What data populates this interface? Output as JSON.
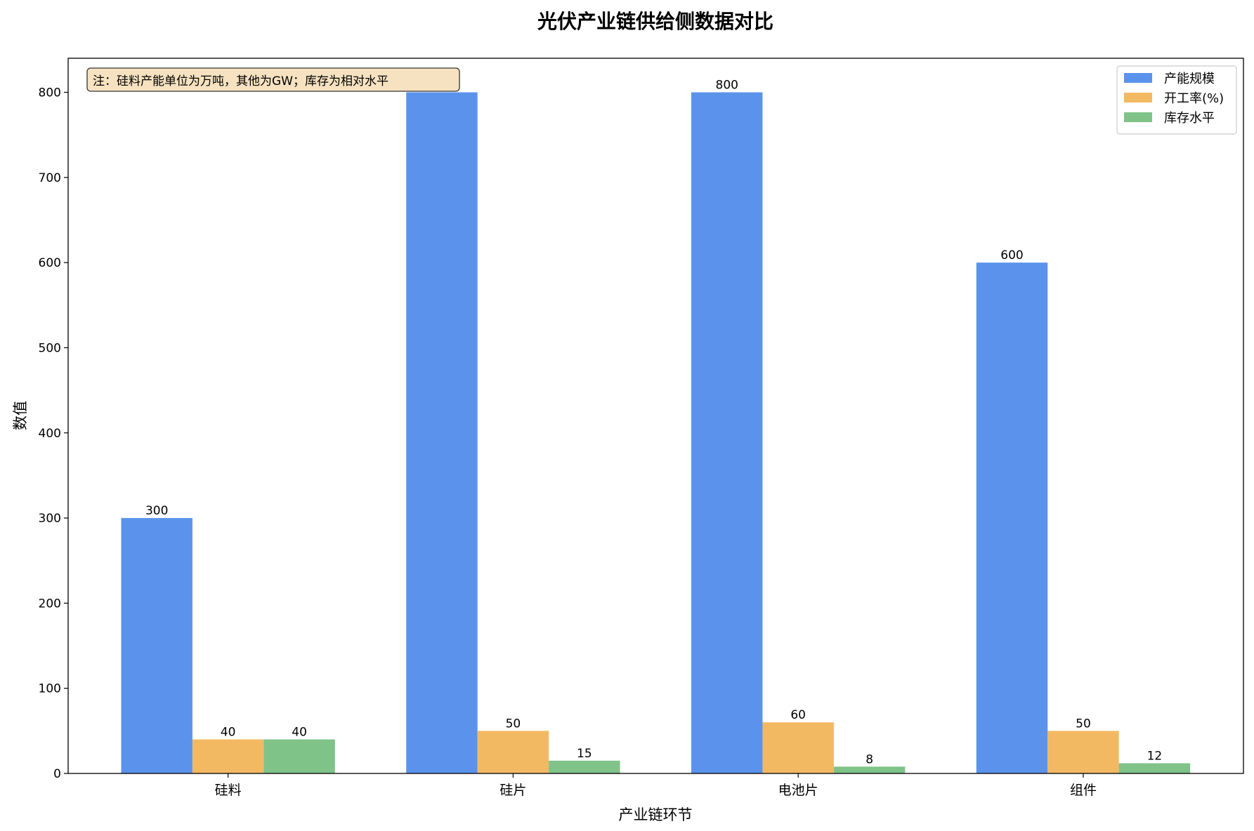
{
  "chart_data": {
    "type": "bar",
    "title": "光伏产业链供给侧数据对比",
    "xlabel": "产业链环节",
    "ylabel": "数值",
    "categories": [
      "硅料",
      "硅片",
      "电池片",
      "组件"
    ],
    "series": [
      {
        "name": "产能规模",
        "values": [
          300,
          800,
          800,
          600
        ],
        "color": "#5b93ec"
      },
      {
        "name": "开工率(%)",
        "values": [
          40,
          50,
          60,
          50
        ],
        "color": "#f3b962"
      },
      {
        "name": "库存水平",
        "values": [
          40,
          15,
          8,
          12
        ],
        "color": "#7fc389"
      }
    ],
    "ylim": [
      0,
      840
    ],
    "yticks": [
      0,
      100,
      200,
      300,
      400,
      500,
      600,
      700,
      800
    ],
    "grid": false,
    "legend": "top-right",
    "annotation": "注：硅料产能单位为万吨，其他为GW；库存为相对水平",
    "annotation_bg": "#f6e2c0"
  }
}
